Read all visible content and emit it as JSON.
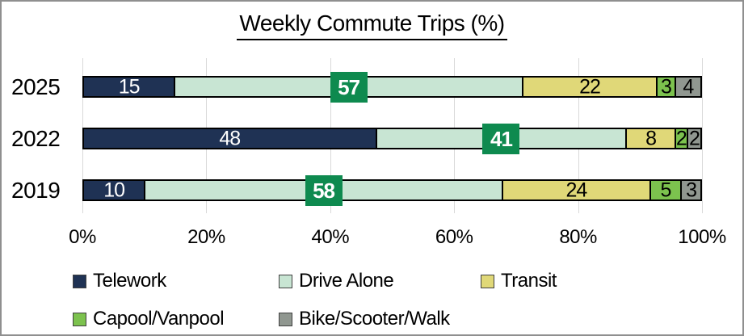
{
  "chart_data": {
    "type": "bar",
    "variant": "horizontal-stacked",
    "title": "Weekly Commute Trips (%)",
    "categories": [
      "2025",
      "2022",
      "2019"
    ],
    "series": [
      {
        "name": "Telework",
        "color": "#1f3254",
        "label_style": "light",
        "values": [
          15,
          48,
          10
        ]
      },
      {
        "name": "Drive Alone",
        "color": "#c8e5d3",
        "label_style": "box",
        "values": [
          57,
          41,
          58
        ]
      },
      {
        "name": "Transit",
        "color": "#e0d878",
        "label_style": "dark",
        "values": [
          22,
          8,
          24
        ]
      },
      {
        "name": "Capool/Vanpool",
        "color": "#7cc24e",
        "label_style": "dark",
        "values": [
          3,
          2,
          5
        ]
      },
      {
        "name": "Bike/Scooter/Walk",
        "color": "#909790",
        "label_style": "dark",
        "values": [
          4,
          2,
          3
        ]
      }
    ],
    "x_ticks": [
      "0%",
      "20%",
      "40%",
      "60%",
      "80%",
      "100%"
    ],
    "xlim": [
      0,
      100
    ],
    "grid": "vertical",
    "legend_position": "bottom",
    "label_box_color": "#0e8a4f",
    "label_box_text_color": "#ffffff",
    "segment_border_color": "#000000",
    "gridline_color": "#d9d9d9",
    "frame_border_color": "#8f8f8f"
  }
}
